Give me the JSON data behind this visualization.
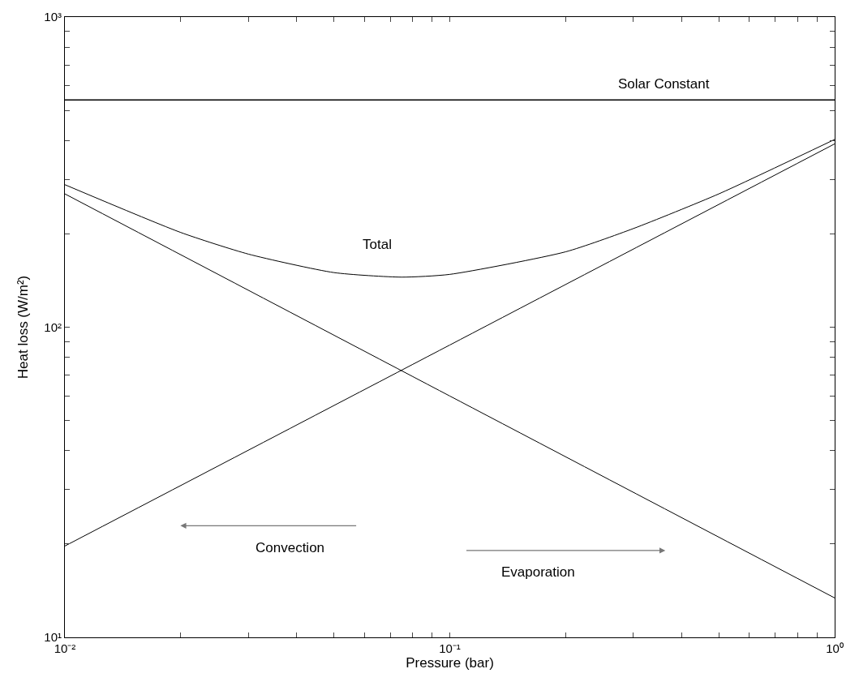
{
  "chart_data": {
    "type": "line",
    "xlabel": "Pressure (bar)",
    "ylabel": "Heat loss (W/m²)",
    "log": "xy",
    "xlim": [
      0.01,
      1
    ],
    "ylim": [
      10,
      1000
    ],
    "xticks": [
      {
        "value": 0.01,
        "label": "10⁻²"
      },
      {
        "value": 0.02,
        "label": null
      },
      {
        "value": 0.03,
        "label": null
      },
      {
        "value": 0.04,
        "label": null
      },
      {
        "value": 0.05,
        "label": null
      },
      {
        "value": 0.06,
        "label": null
      },
      {
        "value": 0.07,
        "label": null
      },
      {
        "value": 0.08,
        "label": null
      },
      {
        "value": 0.09,
        "label": null
      },
      {
        "value": 0.1,
        "label": "10⁻¹"
      },
      {
        "value": 0.2,
        "label": null
      },
      {
        "value": 0.3,
        "label": null
      },
      {
        "value": 0.4,
        "label": null
      },
      {
        "value": 0.5,
        "label": null
      },
      {
        "value": 0.6,
        "label": null
      },
      {
        "value": 0.7,
        "label": null
      },
      {
        "value": 0.8,
        "label": null
      },
      {
        "value": 0.9,
        "label": null
      },
      {
        "value": 1,
        "label": "10⁰"
      }
    ],
    "yticks": [
      {
        "value": 10,
        "label": "10¹"
      },
      {
        "value": 20,
        "label": null
      },
      {
        "value": 30,
        "label": null
      },
      {
        "value": 40,
        "label": null
      },
      {
        "value": 50,
        "label": null
      },
      {
        "value": 60,
        "label": null
      },
      {
        "value": 70,
        "label": null
      },
      {
        "value": 80,
        "label": null
      },
      {
        "value": 90,
        "label": null
      },
      {
        "value": 100,
        "label": "10²"
      },
      {
        "value": 200,
        "label": null
      },
      {
        "value": 300,
        "label": null
      },
      {
        "value": 400,
        "label": null
      },
      {
        "value": 500,
        "label": null
      },
      {
        "value": 600,
        "label": null
      },
      {
        "value": 700,
        "label": null
      },
      {
        "value": 800,
        "label": null
      },
      {
        "value": 900,
        "label": null
      },
      {
        "value": 1000,
        "label": "10³"
      }
    ],
    "series": [
      {
        "color": "#000000",
        "x": [
          0.01,
          0.1,
          1
        ],
        "values": [
          269,
          60,
          13.4
        ]
      },
      {
        "color": "#000000",
        "x": [
          0.01,
          0.1,
          1
        ],
        "values": [
          19.7,
          87.6,
          390
        ]
      },
      {
        "name": "Total",
        "color": "#000000",
        "x": [
          0.01,
          0.02,
          0.03,
          0.05,
          0.075,
          0.1,
          0.2,
          0.3,
          0.5,
          1
        ],
        "values": [
          288,
          202,
          172,
          150,
          145,
          148,
          175,
          208,
          269,
          403
        ]
      }
    ],
    "ref_lines": [
      {
        "axis": "y",
        "value": 540,
        "label": "Solar Constant",
        "color": "#000000"
      }
    ],
    "annotations": [
      "Convection",
      "Evaporation"
    ]
  }
}
